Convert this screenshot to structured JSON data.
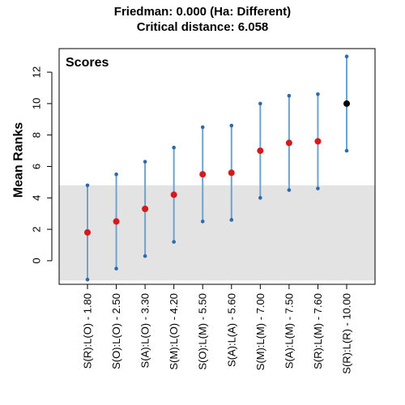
{
  "chart_data": {
    "type": "scatter",
    "title": "Friedman: 0.000 (Ha: Different)",
    "subtitle": "Critical distance: 6.058",
    "ylabel": "Mean Ranks",
    "xlabel": "",
    "legend_label": "Scores",
    "ylim": [
      -1.5,
      13.5
    ],
    "yticks": [
      0,
      2,
      4,
      6,
      8,
      10,
      12
    ],
    "critical_band": [
      -1.258,
      4.8
    ],
    "categories": [
      "S(R):L(O) - 1.80",
      "S(O):L(O) - 2.50",
      "S(A):L(O) - 3.30",
      "S(M):L(O) - 4.20",
      "S(O):L(M) - 5.50",
      "S(A):L(A) - 5.60",
      "S(M):L(M) - 7.00",
      "S(A):L(M) - 7.50",
      "S(R):L(M) - 7.60",
      "S(R):L(R) - 10.00"
    ],
    "series": [
      {
        "values": [
          1.8,
          2.5,
          3.3,
          4.2,
          5.5,
          5.6,
          7.0,
          7.5,
          7.6,
          10.0
        ],
        "lower": [
          -1.2,
          -0.5,
          0.3,
          1.2,
          2.5,
          2.6,
          4.0,
          4.5,
          4.6,
          7.0
        ],
        "upper": [
          4.8,
          5.5,
          6.3,
          7.2,
          8.5,
          8.6,
          10.0,
          10.5,
          10.6,
          13.0
        ]
      }
    ],
    "colors": {
      "point": "#d7191c",
      "best_point": "#000000",
      "whisker": "#6fa3cf",
      "whisker_end": "#2c6aa8",
      "band": "#e3e3e3"
    }
  }
}
